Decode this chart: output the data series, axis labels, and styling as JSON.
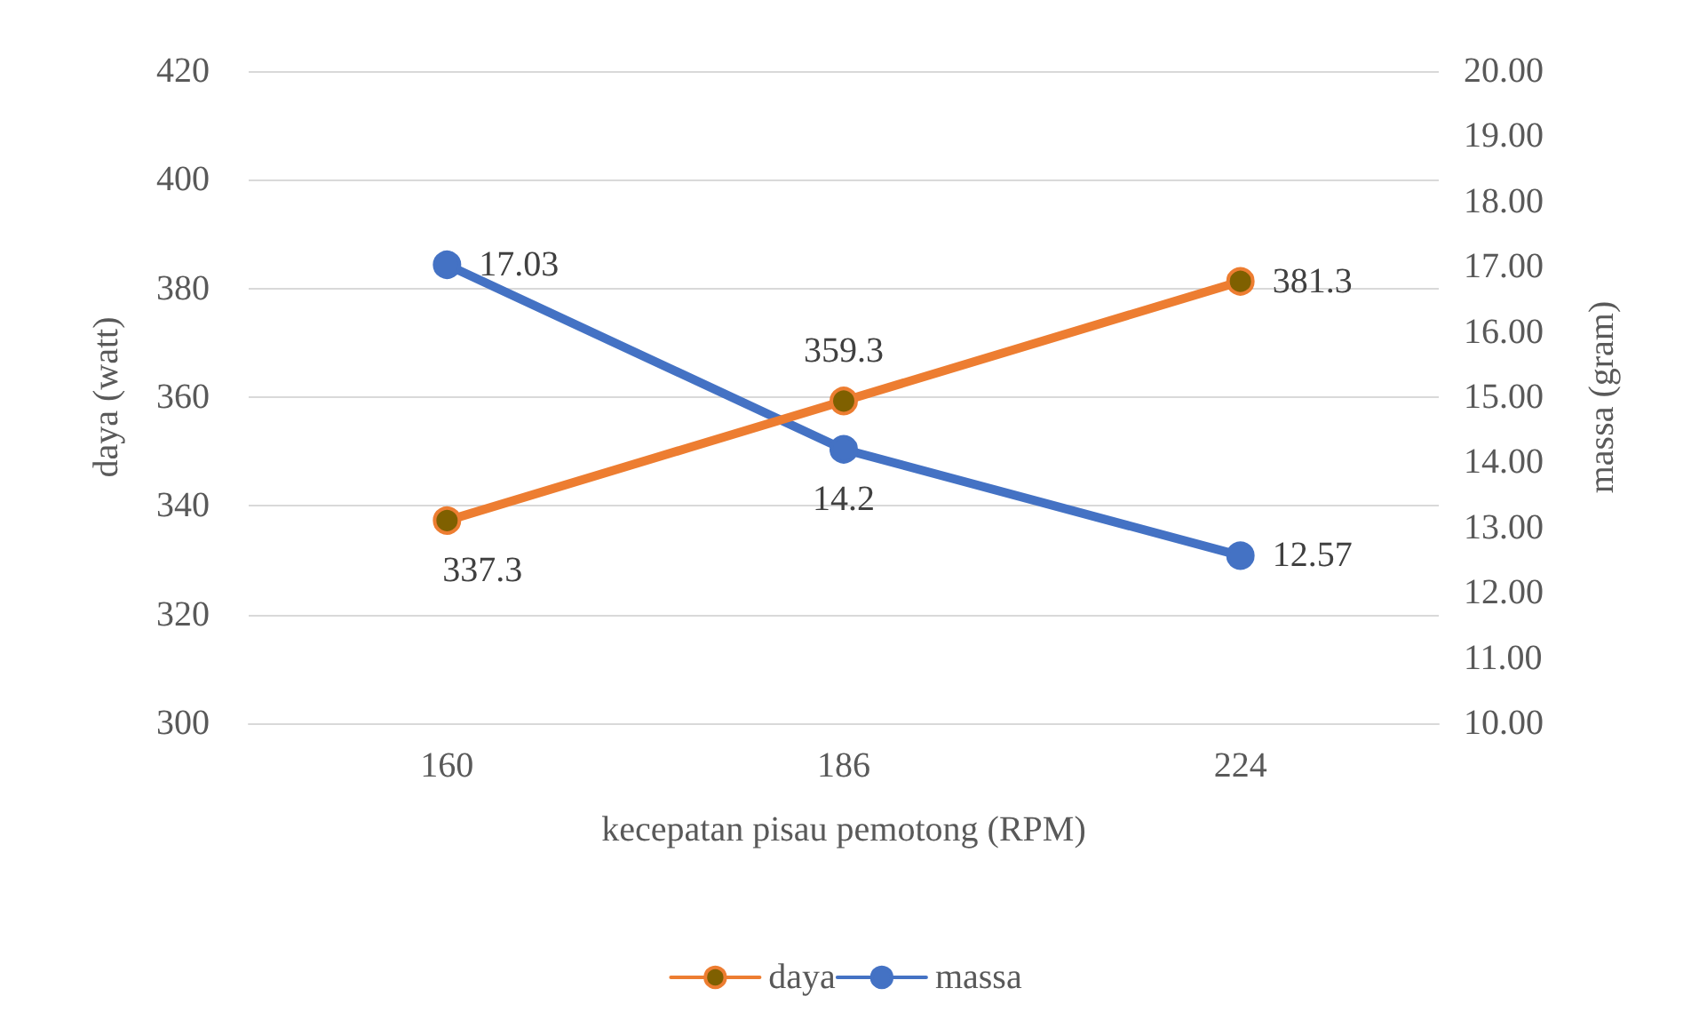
{
  "chart_data": {
    "type": "line",
    "xlabel": "kecepatan pisau pemotong (RPM)",
    "ylabel": "daya (watt)",
    "y2label": "massa (gram)",
    "categories": [
      "160",
      "186",
      "224"
    ],
    "series": [
      {
        "name": "daya",
        "color": "#ed7d31",
        "values": [
          337.3,
          359.3,
          381.3
        ]
      },
      {
        "name": "massa",
        "color": "#4472c4",
        "values": [
          17.03,
          14.2,
          12.57
        ],
        "axis": "y2"
      }
    ],
    "ylim": [
      300,
      420
    ],
    "yticks": [
      300,
      320,
      340,
      360,
      380,
      400,
      420
    ],
    "y2lim": [
      10,
      20
    ],
    "y2ticks": [
      {
        "value": 10,
        "label": "10.00"
      },
      {
        "value": 11,
        "label": "11.00"
      },
      {
        "value": 12,
        "label": "12.00"
      },
      {
        "value": 13,
        "label": "13.00"
      },
      {
        "value": 14,
        "label": "14.00"
      },
      {
        "value": 15,
        "label": "15.00"
      },
      {
        "value": 16,
        "label": "16.00"
      },
      {
        "value": 17,
        "label": "17.00"
      },
      {
        "value": 18,
        "label": "18.00"
      },
      {
        "value": 19,
        "label": "19.00"
      },
      {
        "value": 20,
        "label": "20.00"
      }
    ],
    "grid": "y",
    "legend": "bottom",
    "marker": "circle",
    "line_style": "solid",
    "data_labels": true
  }
}
